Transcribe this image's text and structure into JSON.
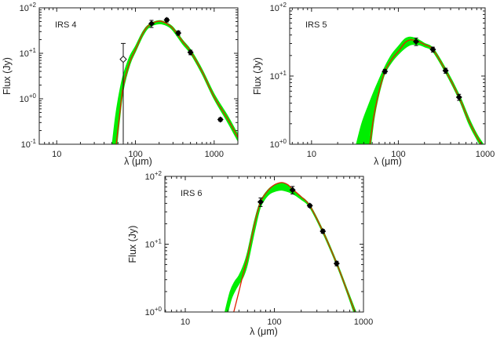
{
  "colors": {
    "model_band": "#00ee00",
    "best_fit": "#e02000",
    "points": "#000000",
    "frame": "#222222"
  },
  "chart_data": [
    {
      "type": "line",
      "name": "IRS 4",
      "xlabel": "λ (μm)",
      "ylabel": "Flux (Jy)",
      "xscale": "log",
      "yscale": "log",
      "xlim": [
        6,
        2000
      ],
      "ylim": [
        0.1,
        100
      ],
      "xticks": [
        {
          "v": 10,
          "label": "10"
        },
        {
          "v": 100,
          "label": "100"
        },
        {
          "v": 1000,
          "label": "1000"
        }
      ],
      "yticks": [
        {
          "v": 0.1,
          "base": "10",
          "exp": "-1"
        },
        {
          "v": 1,
          "base": "10",
          "exp": "+0"
        },
        {
          "v": 10,
          "base": "10",
          "exp": "+1"
        },
        {
          "v": 100,
          "base": "10",
          "exp": "+2"
        }
      ],
      "best_fit": {
        "x": [
          57,
          62,
          70,
          85,
          100,
          125,
          150,
          200,
          250,
          300,
          400,
          500,
          700,
          1000,
          1500,
          2000
        ],
        "y": [
          0.1,
          0.35,
          1.9,
          6.5,
          12,
          28,
          42,
          51,
          45,
          35,
          18,
          11,
          4,
          1.1,
          0.35,
          0.14
        ]
      },
      "model_band_upper": {
        "x": [
          51,
          56,
          62,
          70,
          85,
          100,
          125,
          150,
          200,
          250,
          300,
          400,
          500,
          700,
          1000,
          1500,
          2000
        ],
        "y": [
          0.1,
          0.4,
          1.2,
          3.2,
          8.5,
          14,
          30,
          43,
          52,
          46,
          37,
          19,
          12,
          4.4,
          1.25,
          0.4,
          0.16
        ]
      },
      "model_band_lower": {
        "x": [
          58,
          62,
          70,
          85,
          100,
          125,
          150,
          200,
          250,
          300,
          400,
          500,
          700,
          1000,
          1500,
          2000
        ],
        "y": [
          0.1,
          0.3,
          1.6,
          5.8,
          11,
          25,
          38,
          45,
          41,
          32,
          16,
          10,
          3.6,
          1.0,
          0.3,
          0.12
        ]
      },
      "points": {
        "x": [
          160,
          250,
          350,
          500,
          1200
        ],
        "y": [
          45,
          54,
          28,
          10.5,
          0.35
        ],
        "yerr": [
          8,
          5,
          3,
          1.2,
          0.03
        ]
      },
      "upper_limit_points": {
        "x": [
          70
        ],
        "y": [
          7.4
        ],
        "yhigh": [
          16.5
        ],
        "ylow": [
          0.1
        ]
      }
    },
    {
      "type": "line",
      "name": "IRS 5",
      "xlabel": "λ (μm)",
      "ylabel": "Flux (Jy)",
      "xscale": "log",
      "yscale": "log",
      "xlim": [
        5.6,
        1000
      ],
      "ylim": [
        1,
        100
      ],
      "xticks": [
        {
          "v": 10,
          "label": "10"
        },
        {
          "v": 100,
          "label": "100"
        },
        {
          "v": 1000,
          "label": "1000"
        }
      ],
      "yticks": [
        {
          "v": 1,
          "base": "10",
          "exp": "+0"
        },
        {
          "v": 10,
          "base": "10",
          "exp": "+1"
        },
        {
          "v": 100,
          "base": "10",
          "exp": "+2"
        }
      ],
      "best_fit": {
        "x": [
          47,
          52,
          60,
          70,
          85,
          100,
          120,
          140,
          170,
          200,
          250,
          350,
          500,
          650,
          800,
          900
        ],
        "y": [
          1,
          2.5,
          6,
          11.7,
          18,
          23,
          31,
          34,
          32,
          29,
          24.5,
          12,
          4.9,
          2.2,
          1.3,
          1
        ]
      },
      "model_band_upper": {
        "x": [
          33,
          38,
          45,
          55,
          70,
          85,
          100,
          120,
          140,
          170,
          200,
          250,
          350,
          500,
          650,
          800,
          950
        ],
        "y": [
          1,
          2,
          3.6,
          6.8,
          13.5,
          21,
          27,
          35,
          37,
          34,
          30,
          25.5,
          12.8,
          5.3,
          2.4,
          1.4,
          1
        ]
      },
      "model_band_lower": {
        "x": [
          48,
          53,
          60,
          70,
          85,
          100,
          120,
          140,
          170,
          200,
          250,
          350,
          500,
          650,
          800,
          870
        ],
        "y": [
          1,
          2.6,
          5.6,
          11,
          16.5,
          21,
          26,
          29,
          29,
          27,
          23,
          11.3,
          4.6,
          2.0,
          1.2,
          1
        ]
      },
      "points": {
        "x": [
          70,
          160,
          250,
          350,
          500
        ],
        "y": [
          11.7,
          32,
          24.5,
          12,
          4.9
        ],
        "yerr": [
          0.8,
          4,
          2,
          1,
          0.5
        ]
      }
    },
    {
      "type": "line",
      "name": "IRS 6",
      "xlabel": "λ (μm)",
      "ylabel": "Flux (Jy)",
      "xscale": "log",
      "yscale": "log",
      "xlim": [
        5.9,
        1000
      ],
      "ylim": [
        1,
        100
      ],
      "xticks": [
        {
          "v": 10,
          "label": "10"
        },
        {
          "v": 100,
          "label": "100"
        },
        {
          "v": 1000,
          "label": "1000"
        }
      ],
      "yticks": [
        {
          "v": 1,
          "base": "10",
          "exp": "+0"
        },
        {
          "v": 10,
          "base": "10",
          "exp": "+1"
        },
        {
          "v": 100,
          "base": "10",
          "exp": "+2"
        }
      ],
      "best_fit": {
        "x": [
          35,
          40,
          45,
          50,
          60,
          70,
          85,
          100,
          120,
          140,
          160,
          200,
          250,
          350,
          500,
          650,
          800
        ],
        "y": [
          1,
          2,
          3.8,
          6.5,
          20,
          42,
          62,
          75,
          81,
          76,
          65,
          50,
          37,
          15.5,
          5.2,
          2.1,
          1
        ]
      },
      "model_band_upper": {
        "x": [
          28,
          32,
          36,
          40,
          45,
          50,
          60,
          70,
          85,
          100,
          120,
          140,
          160,
          200,
          250,
          350,
          500,
          650,
          820
        ],
        "y": [
          1,
          2,
          2.8,
          3.4,
          4.8,
          7.5,
          22,
          43,
          63,
          74,
          79,
          75,
          64,
          50,
          37.5,
          16,
          5.4,
          2.2,
          1
        ]
      },
      "model_band_lower": {
        "x": [
          30,
          33,
          37,
          40,
          45,
          50,
          60,
          70,
          85,
          100,
          120,
          140,
          160,
          200,
          250,
          350,
          500,
          650,
          780
        ],
        "y": [
          1,
          1.6,
          2.2,
          2.6,
          3.4,
          5.2,
          16,
          36,
          53,
          60,
          63,
          60,
          56,
          46,
          35,
          14.8,
          5,
          2,
          1
        ]
      },
      "points": {
        "x": [
          70,
          160,
          250,
          350,
          500
        ],
        "y": [
          42,
          63,
          37,
          15.5,
          5.2
        ],
        "yerr": [
          6,
          8,
          2,
          1,
          0.4
        ]
      }
    }
  ]
}
